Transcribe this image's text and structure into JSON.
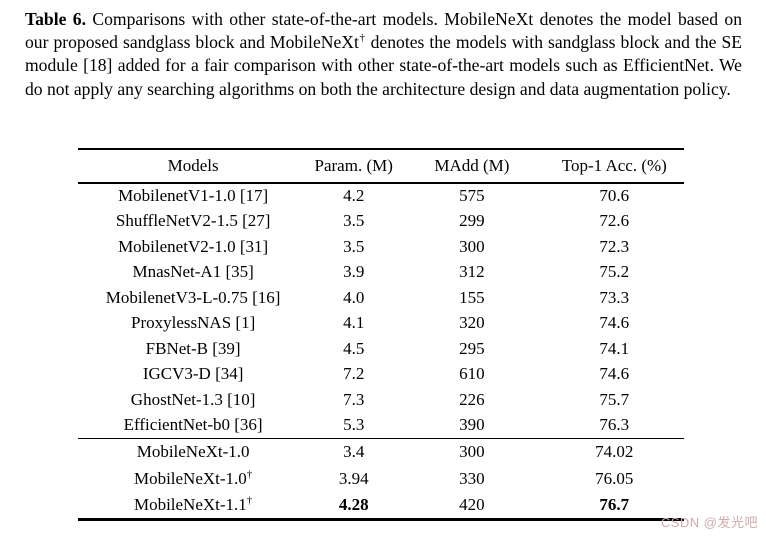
{
  "caption": {
    "label": "Table 6.",
    "part1": "Comparisons with other state-of-the-art models. MobileNeXt denotes the model based on our proposed sandglass block and MobileNeXt",
    "dagger": "†",
    "part2": " denotes the models with sandglass block and the SE module [18] added for a fair comparison with other state-of-the-art models such as EfficientNet. We do not apply any searching algorithms on both the architecture design and data augmentation policy."
  },
  "table": {
    "headers": {
      "models": "Models",
      "param": "Param. (M)",
      "madd": "MAdd (M)",
      "acc": "Top-1 Acc. (%)"
    },
    "rows": [
      {
        "model": "MobilenetV1-1.0 [17]",
        "param": "4.2",
        "madd": "575",
        "acc": "70.6"
      },
      {
        "model": "ShuffleNetV2-1.5 [27]",
        "param": "3.5",
        "madd": "299",
        "acc": "72.6"
      },
      {
        "model": "MobilenetV2-1.0 [31]",
        "param": "3.5",
        "madd": "300",
        "acc": "72.3"
      },
      {
        "model": "MnasNet-A1 [35]",
        "param": "3.9",
        "madd": "312",
        "acc": "75.2"
      },
      {
        "model": "MobilenetV3-L-0.75 [16]",
        "param": "4.0",
        "madd": "155",
        "acc": "73.3"
      },
      {
        "model": "ProxylessNAS [1]",
        "param": "4.1",
        "madd": "320",
        "acc": "74.6"
      },
      {
        "model": "FBNet-B [39]",
        "param": "4.5",
        "madd": "295",
        "acc": "74.1"
      },
      {
        "model": "IGCV3-D [34]",
        "param": "7.2",
        "madd": "610",
        "acc": "74.6"
      },
      {
        "model": "GhostNet-1.3 [10]",
        "param": "7.3",
        "madd": "226",
        "acc": "75.7"
      },
      {
        "model": "EfficientNet-b0 [36]",
        "param": "5.3",
        "madd": "390",
        "acc": "76.3"
      }
    ],
    "rows2": [
      {
        "model": "MobileNeXt-1.0",
        "sup": "",
        "param": "3.4",
        "madd": "300",
        "acc": "74.02"
      },
      {
        "model": "MobileNeXt-1.0",
        "sup": "†",
        "param": "3.94",
        "madd": "330",
        "acc": "76.05"
      },
      {
        "model": "MobileNeXt-1.1",
        "sup": "†",
        "param": "4.28",
        "madd": "420",
        "acc": "76.7"
      }
    ]
  },
  "watermark": {
    "text": "CSDN @发光吧",
    "color": "#cfabab"
  }
}
